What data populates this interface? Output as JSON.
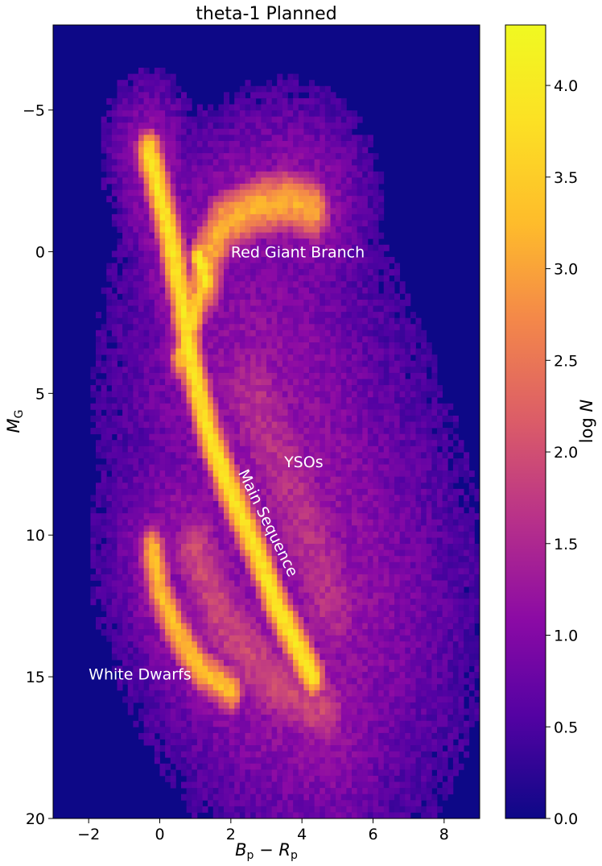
{
  "chart_data": {
    "type": "heatmap",
    "title": "theta-1 Planned",
    "xlabel": "B_p − R_p",
    "ylabel": "M_G",
    "colorbar_label": "log N",
    "xlim": [
      -3,
      9
    ],
    "ylim": [
      20,
      -8
    ],
    "y_inverted": true,
    "clim": [
      0,
      4.33
    ],
    "colormap": "plasma",
    "grid": false,
    "x_ticks": [
      -2,
      0,
      2,
      4,
      6,
      8
    ],
    "y_ticks": [
      -5,
      0,
      5,
      10,
      15,
      20
    ],
    "colorbar_ticks": [
      0.0,
      0.5,
      1.0,
      1.5,
      2.0,
      2.5,
      3.0,
      3.5,
      4.0
    ],
    "x_tick_labels": [
      "−2",
      "0",
      "2",
      "4",
      "6",
      "8"
    ],
    "y_tick_labels": [
      "−5",
      "0",
      "5",
      "10",
      "15",
      "20"
    ],
    "colorbar_tick_labels": [
      "0.0",
      "0.5",
      "1.0",
      "1.5",
      "2.0",
      "2.5",
      "3.0",
      "3.5",
      "4.0"
    ],
    "annotations": [
      {
        "text": "Red Giant Branch",
        "x": 2.0,
        "y": 0.2,
        "rotation": 0
      },
      {
        "text": "YSOs",
        "x": 3.5,
        "y": 7.6,
        "rotation": 0
      },
      {
        "text": "Main Sequence",
        "x": 2.2,
        "y": 7.8,
        "rotation": 64
      },
      {
        "text": "White Dwarfs",
        "x": -2.0,
        "y": 15.1,
        "rotation": 0
      }
    ],
    "features": [
      {
        "name": "main-sequence",
        "path": [
          [
            -0.3,
            -3.5
          ],
          [
            0.2,
            -1.0
          ],
          [
            0.6,
            1.5
          ],
          [
            0.9,
            4.0
          ],
          [
            1.4,
            6.5
          ],
          [
            2.0,
            8.5
          ],
          [
            2.7,
            10.5
          ],
          [
            3.3,
            12.5
          ],
          [
            3.9,
            14.0
          ],
          [
            4.3,
            15.0
          ]
        ],
        "peak": 3.9,
        "width": 0.28
      },
      {
        "name": "red-giant-branch",
        "path": [
          [
            1.2,
            1.2
          ],
          [
            1.4,
            0.0
          ],
          [
            1.8,
            -1.0
          ],
          [
            2.8,
            -1.6
          ],
          [
            3.6,
            -1.8
          ],
          [
            4.3,
            -1.5
          ]
        ],
        "peak": 3.1,
        "width": 0.4
      },
      {
        "name": "red-clump",
        "path": [
          [
            1.1,
            0.2
          ],
          [
            1.3,
            1.0
          ]
        ],
        "peak": 4.0,
        "width": 0.22
      },
      {
        "name": "subgiant-branch",
        "path": [
          [
            0.6,
            3.8
          ],
          [
            0.9,
            2.6
          ],
          [
            1.2,
            1.2
          ]
        ],
        "peak": 3.5,
        "width": 0.24
      },
      {
        "name": "white-dwarf-sequence",
        "path": [
          [
            -0.2,
            10.5
          ],
          [
            0.0,
            12.0
          ],
          [
            0.5,
            13.5
          ],
          [
            1.2,
            14.8
          ],
          [
            2.0,
            15.5
          ]
        ],
        "peak": 3.3,
        "width": 0.28
      },
      {
        "name": "yso-region",
        "path": [
          [
            2.6,
            5.0
          ],
          [
            3.4,
            7.5
          ],
          [
            4.2,
            10.0
          ],
          [
            4.8,
            12.5
          ]
        ],
        "peak": 1.6,
        "width": 0.9
      },
      {
        "name": "binary-envelope",
        "path": [
          [
            1.0,
            10.5
          ],
          [
            1.8,
            13.0
          ],
          [
            3.0,
            15.0
          ],
          [
            4.6,
            16.2
          ]
        ],
        "peak": 1.9,
        "width": 0.6
      }
    ]
  }
}
